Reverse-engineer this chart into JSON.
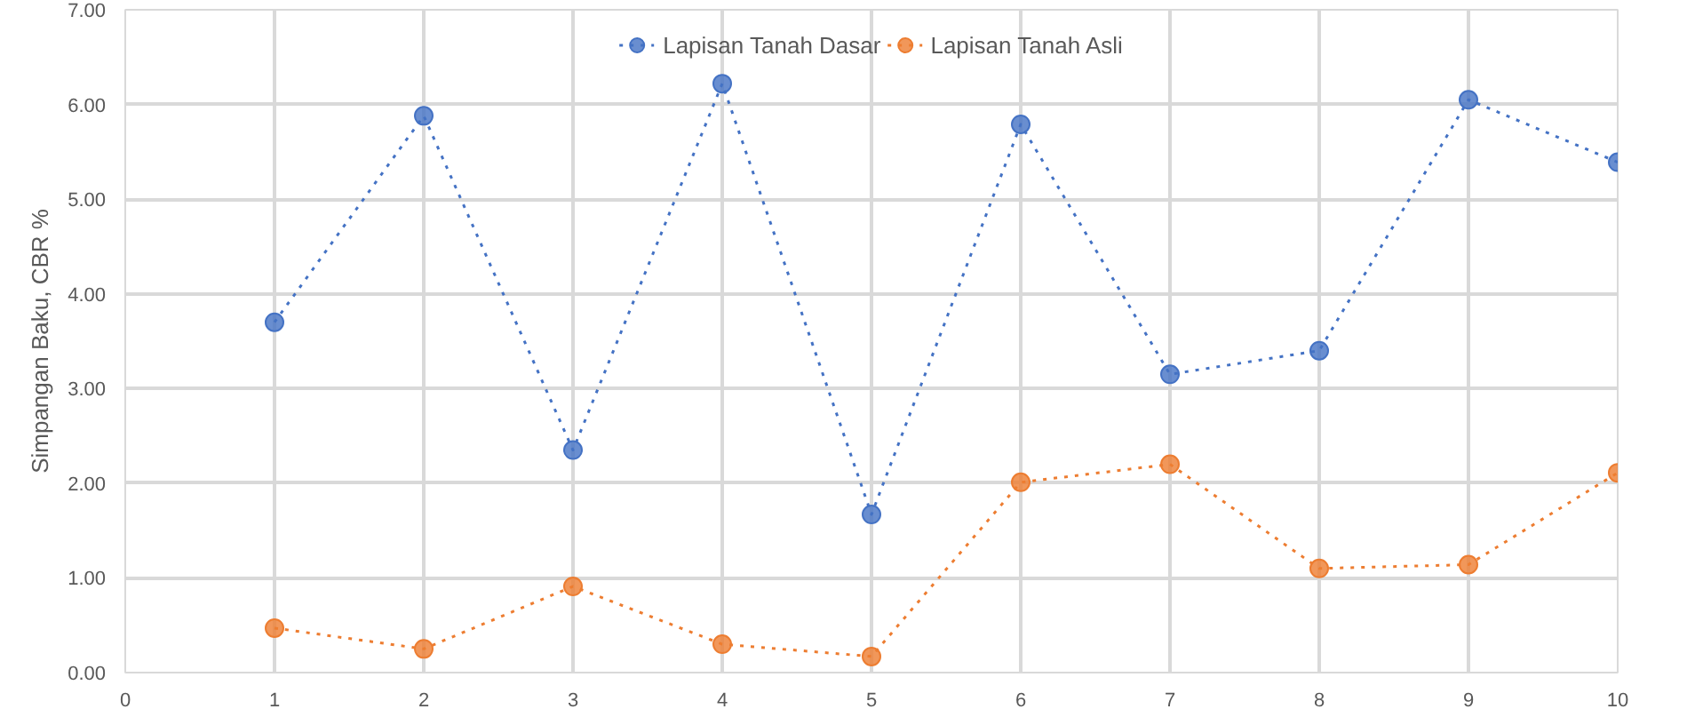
{
  "chart_data": {
    "type": "line",
    "ylabel": "Simpangan Baku, CBR %",
    "x": [
      1,
      2,
      3,
      4,
      5,
      6,
      7,
      8,
      9,
      10
    ],
    "series": [
      {
        "name": "Lapisan Tanah Dasar",
        "color": "#4472c4",
        "values": [
          3.7,
          5.88,
          2.35,
          6.22,
          1.67,
          5.79,
          3.15,
          3.4,
          6.05,
          5.39
        ]
      },
      {
        "name": "Lapisan Tanah Asli",
        "color": "#ed7d31",
        "values": [
          0.47,
          0.25,
          0.91,
          0.3,
          0.17,
          2.01,
          2.2,
          1.1,
          1.14,
          2.11
        ]
      }
    ],
    "xlim": [
      0,
      10
    ],
    "xticks": [
      0,
      1,
      2,
      3,
      4,
      5,
      6,
      7,
      8,
      9,
      10
    ],
    "ylim": [
      0,
      7
    ],
    "yticks": [
      {
        "value": 0,
        "label": "0.00"
      },
      {
        "value": 1,
        "label": "1.00"
      },
      {
        "value": 2,
        "label": "2.00"
      },
      {
        "value": 3,
        "label": "3.00"
      },
      {
        "value": 4,
        "label": "4.00"
      },
      {
        "value": 5,
        "label": "5.00"
      },
      {
        "value": 6,
        "label": "6.00"
      },
      {
        "value": 7,
        "label": "7.00"
      }
    ],
    "grid": true,
    "legend": "top",
    "marker": "circle",
    "line_style": "dotted"
  }
}
